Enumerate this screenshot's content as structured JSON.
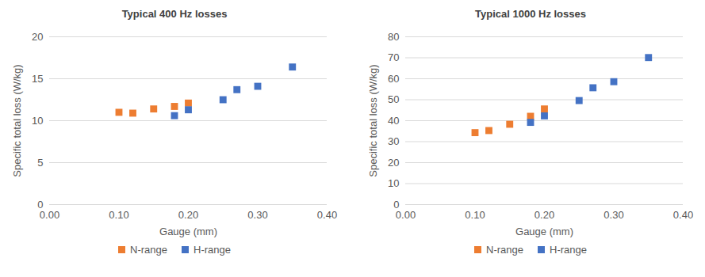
{
  "chart_data": [
    {
      "type": "scatter",
      "title": "Typical 400 Hz losses",
      "x_label": "Gauge (mm)",
      "y_label": "Specific total loss (W/kg)",
      "series": [
        {
          "name": "N-range",
          "color": "#ED7D31",
          "marker": "square",
          "x": [
            0.1,
            0.12,
            0.15,
            0.18,
            0.2
          ],
          "values": [
            11.0,
            10.9,
            11.4,
            11.7,
            12.1
          ]
        },
        {
          "name": "H-range",
          "color": "#4472C4",
          "marker": "square",
          "x": [
            0.18,
            0.2,
            0.25,
            0.27,
            0.3,
            0.35
          ],
          "values": [
            10.6,
            11.3,
            12.5,
            13.7,
            14.1,
            16.4
          ]
        }
      ],
      "xlim": [
        0,
        0.4
      ],
      "xticks": [
        {
          "value": 0,
          "label": "0.00"
        },
        {
          "value": 0.1,
          "label": "0.10"
        },
        {
          "value": 0.2,
          "label": "0.20"
        },
        {
          "value": 0.3,
          "label": "0.30"
        },
        {
          "value": 0.4,
          "label": "0.40"
        }
      ],
      "ylim": [
        0,
        20
      ],
      "yticks": [
        0,
        5,
        10,
        15,
        20
      ],
      "grid": true,
      "legend": "bottom"
    },
    {
      "type": "scatter",
      "title": "Typical 1000 Hz losses",
      "x_label": "Gauge (mm)",
      "y_label": "Specific total loss (W/kg)",
      "series": [
        {
          "name": "N-range",
          "color": "#ED7D31",
          "marker": "square",
          "x": [
            0.1,
            0.12,
            0.15,
            0.18,
            0.2
          ],
          "values": [
            34.3,
            35.3,
            38.3,
            42.1,
            45.6
          ]
        },
        {
          "name": "H-range",
          "color": "#4472C4",
          "marker": "square",
          "x": [
            0.18,
            0.2,
            0.25,
            0.27,
            0.3,
            0.35
          ],
          "values": [
            39.2,
            42.3,
            49.6,
            55.7,
            58.6,
            70.1
          ]
        }
      ],
      "xlim": [
        0,
        0.4
      ],
      "xticks": [
        {
          "value": 0,
          "label": "0.00"
        },
        {
          "value": 0.1,
          "label": "0.10"
        },
        {
          "value": 0.2,
          "label": "0.20"
        },
        {
          "value": 0.3,
          "label": "0.30"
        },
        {
          "value": 0.4,
          "label": "0.40"
        }
      ],
      "ylim": [
        0,
        80
      ],
      "yticks": [
        0,
        10,
        20,
        30,
        40,
        50,
        60,
        70,
        80
      ],
      "grid": true,
      "legend": "bottom"
    }
  ]
}
